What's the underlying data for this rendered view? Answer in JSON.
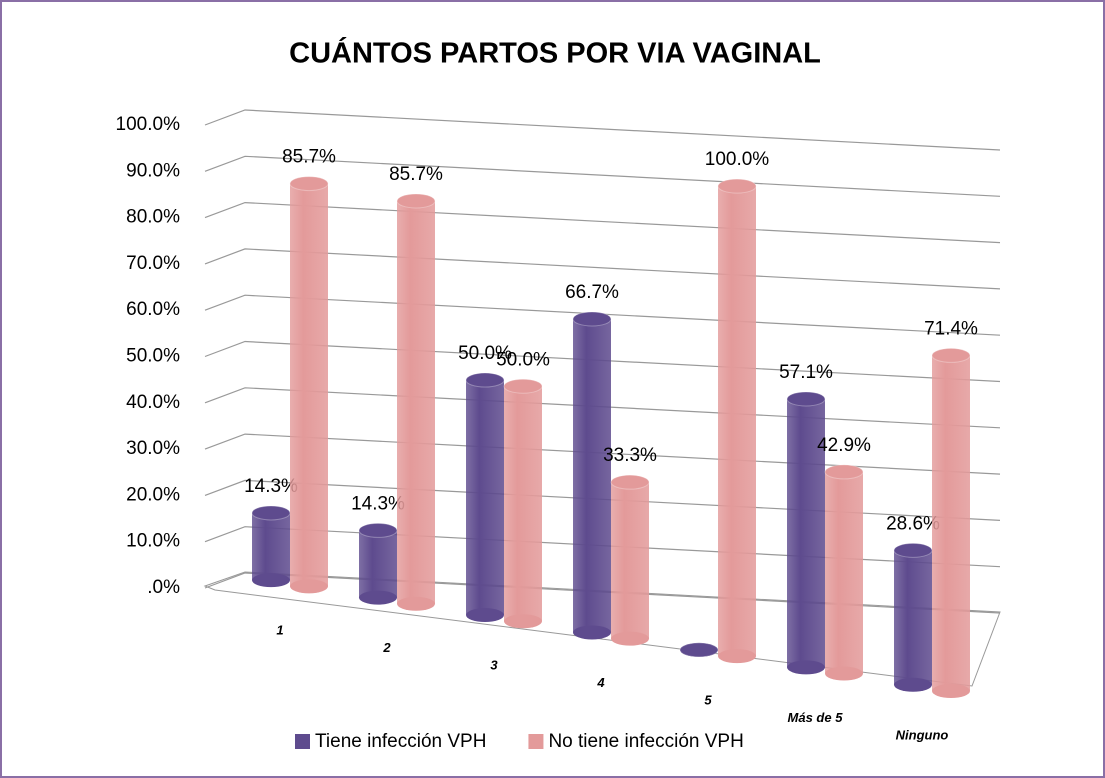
{
  "chart_data": {
    "type": "bar",
    "title": "CUÁNTOS PARTOS POR VIA VAGINAL",
    "categories": [
      "1",
      "2",
      "3",
      "4",
      "5",
      "Más de 5",
      "Ninguno"
    ],
    "series": [
      {
        "name": "Tiene infección VPH",
        "color": "#5e4b8e",
        "values": [
          14.3,
          14.3,
          50.0,
          66.7,
          0,
          57.1,
          28.6
        ],
        "value_labels": [
          "14.3%",
          "14.3%",
          "50.0%",
          "66.7%",
          null,
          "57.1%",
          "28.6%"
        ]
      },
      {
        "name": "No tiene infección VPH",
        "color": "#e39a9a",
        "values": [
          85.7,
          85.7,
          50.0,
          33.3,
          100.0,
          42.9,
          71.4
        ],
        "value_labels": [
          "85.7%",
          "85.7%",
          "50.0%",
          "33.3%",
          "100.0%",
          "42.9%",
          "71.4%"
        ]
      }
    ],
    "ylim": [
      0,
      100
    ],
    "yticks": [
      {
        "value": 0,
        "label": ".0%"
      },
      {
        "value": 10,
        "label": "10.0%"
      },
      {
        "value": 20,
        "label": "20.0%"
      },
      {
        "value": 30,
        "label": "30.0%"
      },
      {
        "value": 40,
        "label": "40.0%"
      },
      {
        "value": 50,
        "label": "50.0%"
      },
      {
        "value": 60,
        "label": "60.0%"
      },
      {
        "value": 70,
        "label": "70.0%"
      },
      {
        "value": 80,
        "label": "80.0%"
      },
      {
        "value": 90,
        "label": "90.0%"
      },
      {
        "value": 100,
        "label": "100.0%"
      }
    ],
    "grid": true
  }
}
